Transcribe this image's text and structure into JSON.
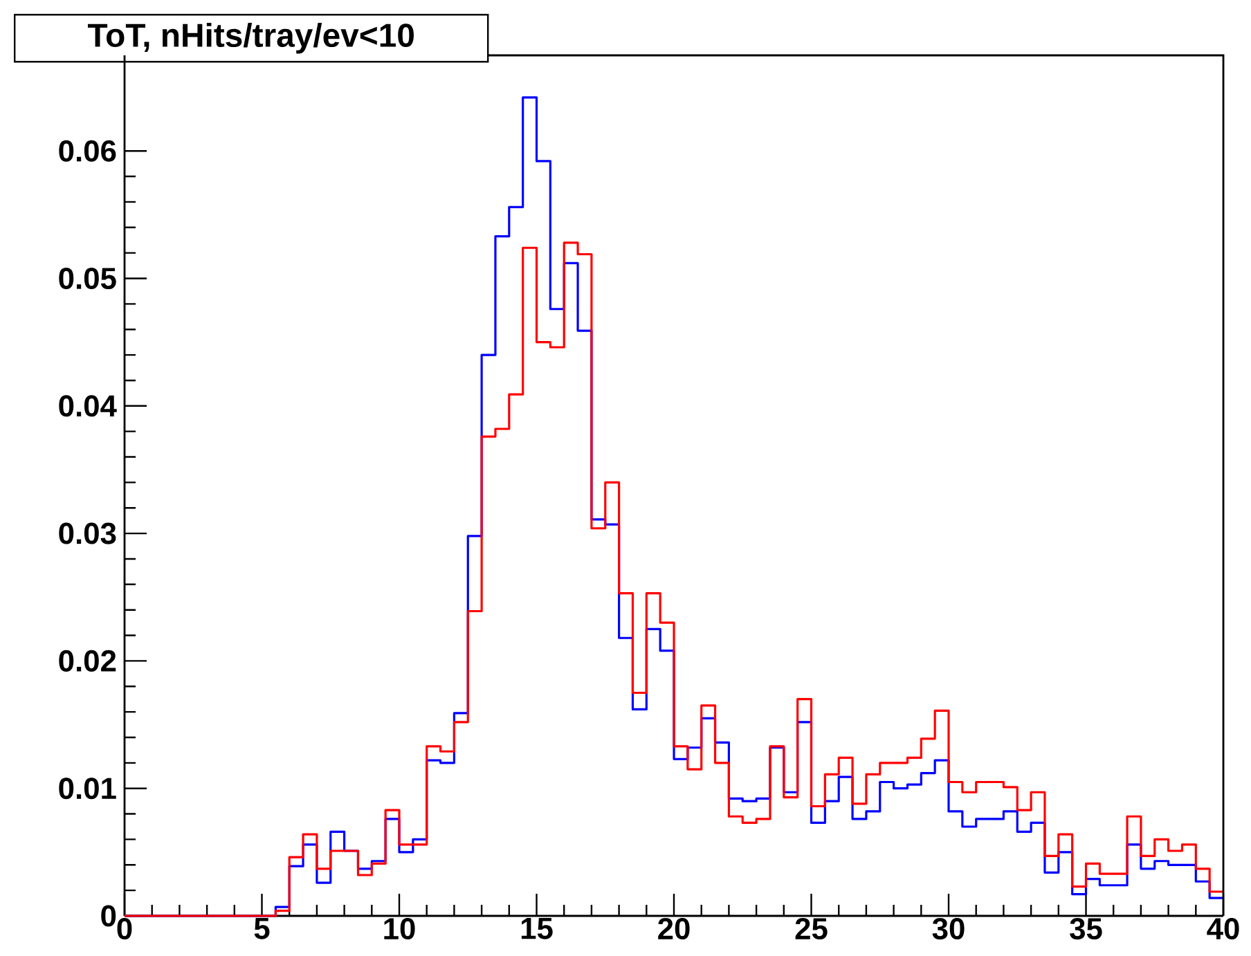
{
  "chart_data": {
    "type": "histogram",
    "title": "ToT, nHits/tray/ev<10",
    "bins": [
      0,
      0.5,
      1,
      1.5,
      2,
      2.5,
      3,
      3.5,
      4,
      4.5,
      5,
      5.5,
      6,
      6.5,
      7,
      7.5,
      8,
      8.5,
      9,
      9.5,
      10,
      10.5,
      11,
      11.5,
      12,
      12.5,
      13,
      13.5,
      14,
      14.5,
      15,
      15.5,
      16,
      16.5,
      17,
      17.5,
      18,
      18.5,
      19,
      19.5,
      20,
      20.5,
      21,
      21.5,
      22,
      22.5,
      23,
      23.5,
      24,
      24.5,
      25,
      25.5,
      26,
      26.5,
      27,
      27.5,
      28,
      28.5,
      29,
      29.5,
      30,
      30.5,
      31,
      31.5,
      32,
      32.5,
      33,
      33.5,
      34,
      34.5,
      35,
      35.5,
      36,
      36.5,
      37,
      37.5,
      38,
      38.5,
      39,
      39.5,
      40
    ],
    "series": [
      {
        "color": "#0000ff",
        "values": [
          0,
          0,
          0,
          0,
          0,
          0,
          0,
          0,
          0,
          0,
          0,
          0.0007,
          0.0039,
          0.0056,
          0.0026,
          0.0066,
          0.0051,
          0.0037,
          0.0043,
          0.0076,
          0.005,
          0.006,
          0.0122,
          0.012,
          0.0159,
          0.0298,
          0.044,
          0.0533,
          0.0556,
          0.0642,
          0.0592,
          0.0476,
          0.0512,
          0.0459,
          0.0311,
          0.0307,
          0.0218,
          0.0162,
          0.0225,
          0.0208,
          0.0123,
          0.0132,
          0.0155,
          0.0136,
          0.0092,
          0.009,
          0.0092,
          0.0132,
          0.0097,
          0.0152,
          0.0073,
          0.009,
          0.0109,
          0.0076,
          0.0082,
          0.0105,
          0.01,
          0.0103,
          0.0112,
          0.0122,
          0.0082,
          0.007,
          0.0076,
          0.0076,
          0.0082,
          0.0066,
          0.0073,
          0.0034,
          0.005,
          0.0017,
          0.0029,
          0.0024,
          0.0024,
          0.0056,
          0.0037,
          0.0043,
          0.004,
          0.004,
          0.0027,
          0.0014
        ]
      },
      {
        "color": "#ff0000",
        "values": [
          0,
          0,
          0,
          0,
          0,
          0,
          0,
          0,
          0,
          0,
          0,
          0.0004,
          0.0046,
          0.0064,
          0.0037,
          0.0051,
          0.0051,
          0.0032,
          0.0041,
          0.0083,
          0.0056,
          0.0056,
          0.0133,
          0.0129,
          0.0152,
          0.0239,
          0.0376,
          0.0382,
          0.0409,
          0.0524,
          0.045,
          0.0446,
          0.0528,
          0.0519,
          0.0304,
          0.034,
          0.0253,
          0.0175,
          0.0253,
          0.023,
          0.0133,
          0.0115,
          0.0165,
          0.012,
          0.0078,
          0.0073,
          0.0076,
          0.0133,
          0.0093,
          0.017,
          0.0086,
          0.0111,
          0.0124,
          0.0088,
          0.0111,
          0.012,
          0.012,
          0.0124,
          0.0139,
          0.0161,
          0.0105,
          0.0097,
          0.0105,
          0.0105,
          0.0101,
          0.0083,
          0.0097,
          0.0047,
          0.0064,
          0.0023,
          0.0041,
          0.0033,
          0.0033,
          0.0078,
          0.0047,
          0.006,
          0.0051,
          0.0056,
          0.0037,
          0.0019
        ]
      }
    ],
    "xlim": [
      0,
      40
    ],
    "ylim": [
      0,
      0.0675
    ],
    "xticks": [
      0,
      5,
      10,
      15,
      20,
      25,
      30,
      35,
      40
    ],
    "yticks": [
      0,
      0.01,
      0.02,
      0.03,
      0.04,
      0.05,
      0.06
    ]
  }
}
